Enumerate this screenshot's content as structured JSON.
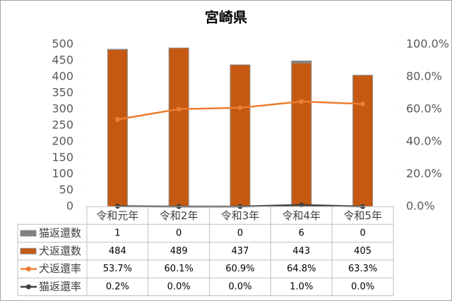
{
  "chart_data": {
    "type": "bar",
    "title": "宮崎県",
    "categories": [
      "令和元年",
      "令和2年",
      "令和3年",
      "令和4年",
      "令和5年"
    ],
    "series": [
      {
        "name": "猫返還数",
        "type": "bar",
        "color": "#7f7f7f",
        "values": [
          1,
          0,
          0,
          6,
          0
        ]
      },
      {
        "name": "犬返還数",
        "type": "bar",
        "color": "#c65911",
        "values": [
          484,
          489,
          437,
          443,
          405
        ]
      },
      {
        "name": "犬返還率",
        "type": "line",
        "axis": "y2",
        "color": "#ed7d31",
        "values": [
          53.7,
          60.1,
          60.9,
          64.8,
          63.3
        ],
        "value_labels": [
          "53.7%",
          "60.1%",
          "60.9%",
          "64.8%",
          "63.3%"
        ]
      },
      {
        "name": "猫返還率",
        "type": "line",
        "axis": "y2",
        "color": "#404040",
        "values": [
          0.2,
          0.0,
          0.0,
          1.0,
          0.0
        ],
        "value_labels": [
          "0.2%",
          "0.0%",
          "0.0%",
          "1.0%",
          "0.0%"
        ]
      }
    ],
    "ylim": [
      0,
      500
    ],
    "yticks": [
      0,
      50,
      100,
      150,
      200,
      250,
      300,
      350,
      400,
      450,
      500
    ],
    "y2lim": [
      0,
      100
    ],
    "y2ticks": [
      {
        "value": 0,
        "label": "0.0%"
      },
      {
        "value": 20,
        "label": "20.0%"
      },
      {
        "value": 40,
        "label": "40.0%"
      },
      {
        "value": 60,
        "label": "60.0%"
      },
      {
        "value": 80,
        "label": "80.0%"
      },
      {
        "value": 100,
        "label": "100.0%"
      }
    ]
  }
}
